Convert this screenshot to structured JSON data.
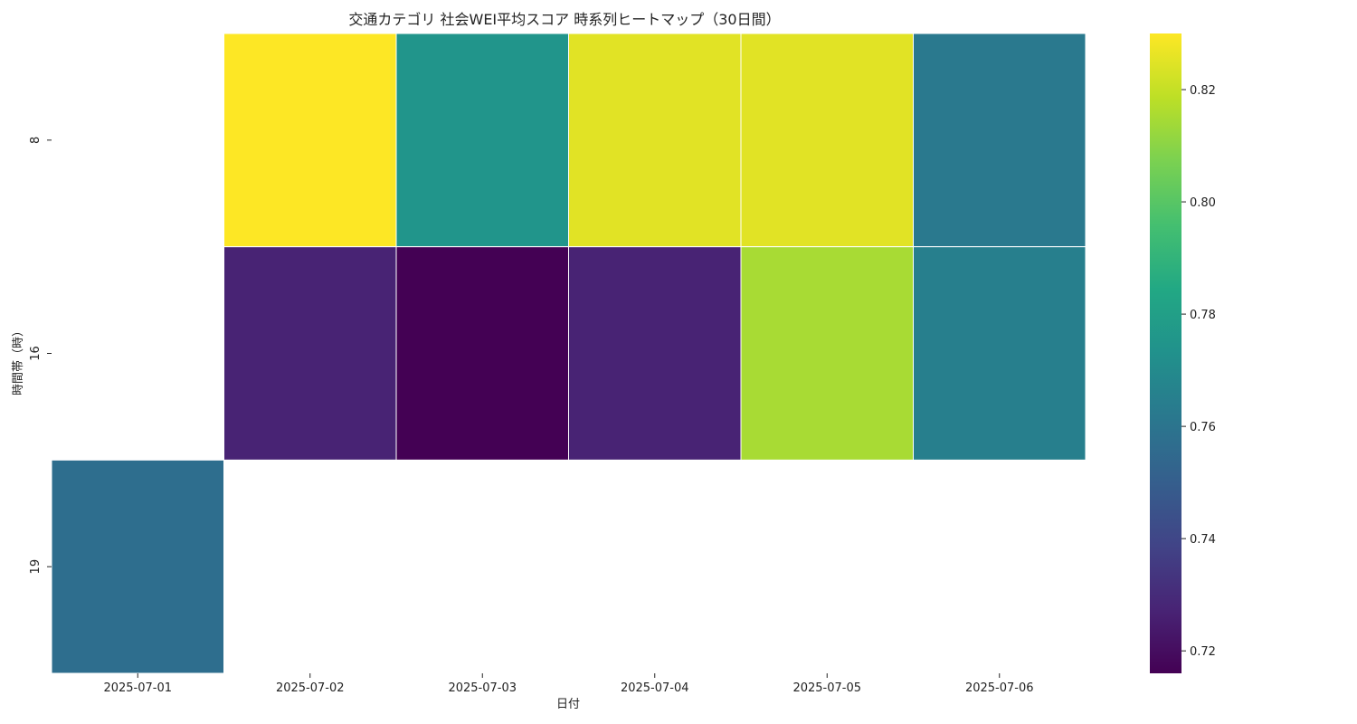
{
  "chart_data": {
    "type": "heatmap",
    "title": "交通カテゴリ 社会WEI平均スコア 時系列ヒートマップ（30日間）",
    "xlabel": "日付",
    "ylabel": "時間帯（時）",
    "x_categories": [
      "2025-07-01",
      "2025-07-02",
      "2025-07-03",
      "2025-07-04",
      "2025-07-05",
      "2025-07-06"
    ],
    "y_categories": [
      "8",
      "16",
      "19"
    ],
    "values": [
      [
        null,
        0.83,
        0.775,
        0.825,
        0.825,
        0.762
      ],
      [
        null,
        0.727,
        0.716,
        0.727,
        0.815,
        0.765
      ],
      [
        0.757,
        null,
        null,
        null,
        null,
        null
      ]
    ],
    "colorbar": {
      "vmin": 0.716,
      "vmax": 0.83,
      "ticks": [
        0.72,
        0.74,
        0.76,
        0.78,
        0.8,
        0.82
      ],
      "tick_labels": [
        "0.72",
        "0.74",
        "0.76",
        "0.78",
        "0.80",
        "0.82"
      ],
      "colormap": "viridis"
    },
    "grid": false,
    "missing_cells": "blank"
  }
}
